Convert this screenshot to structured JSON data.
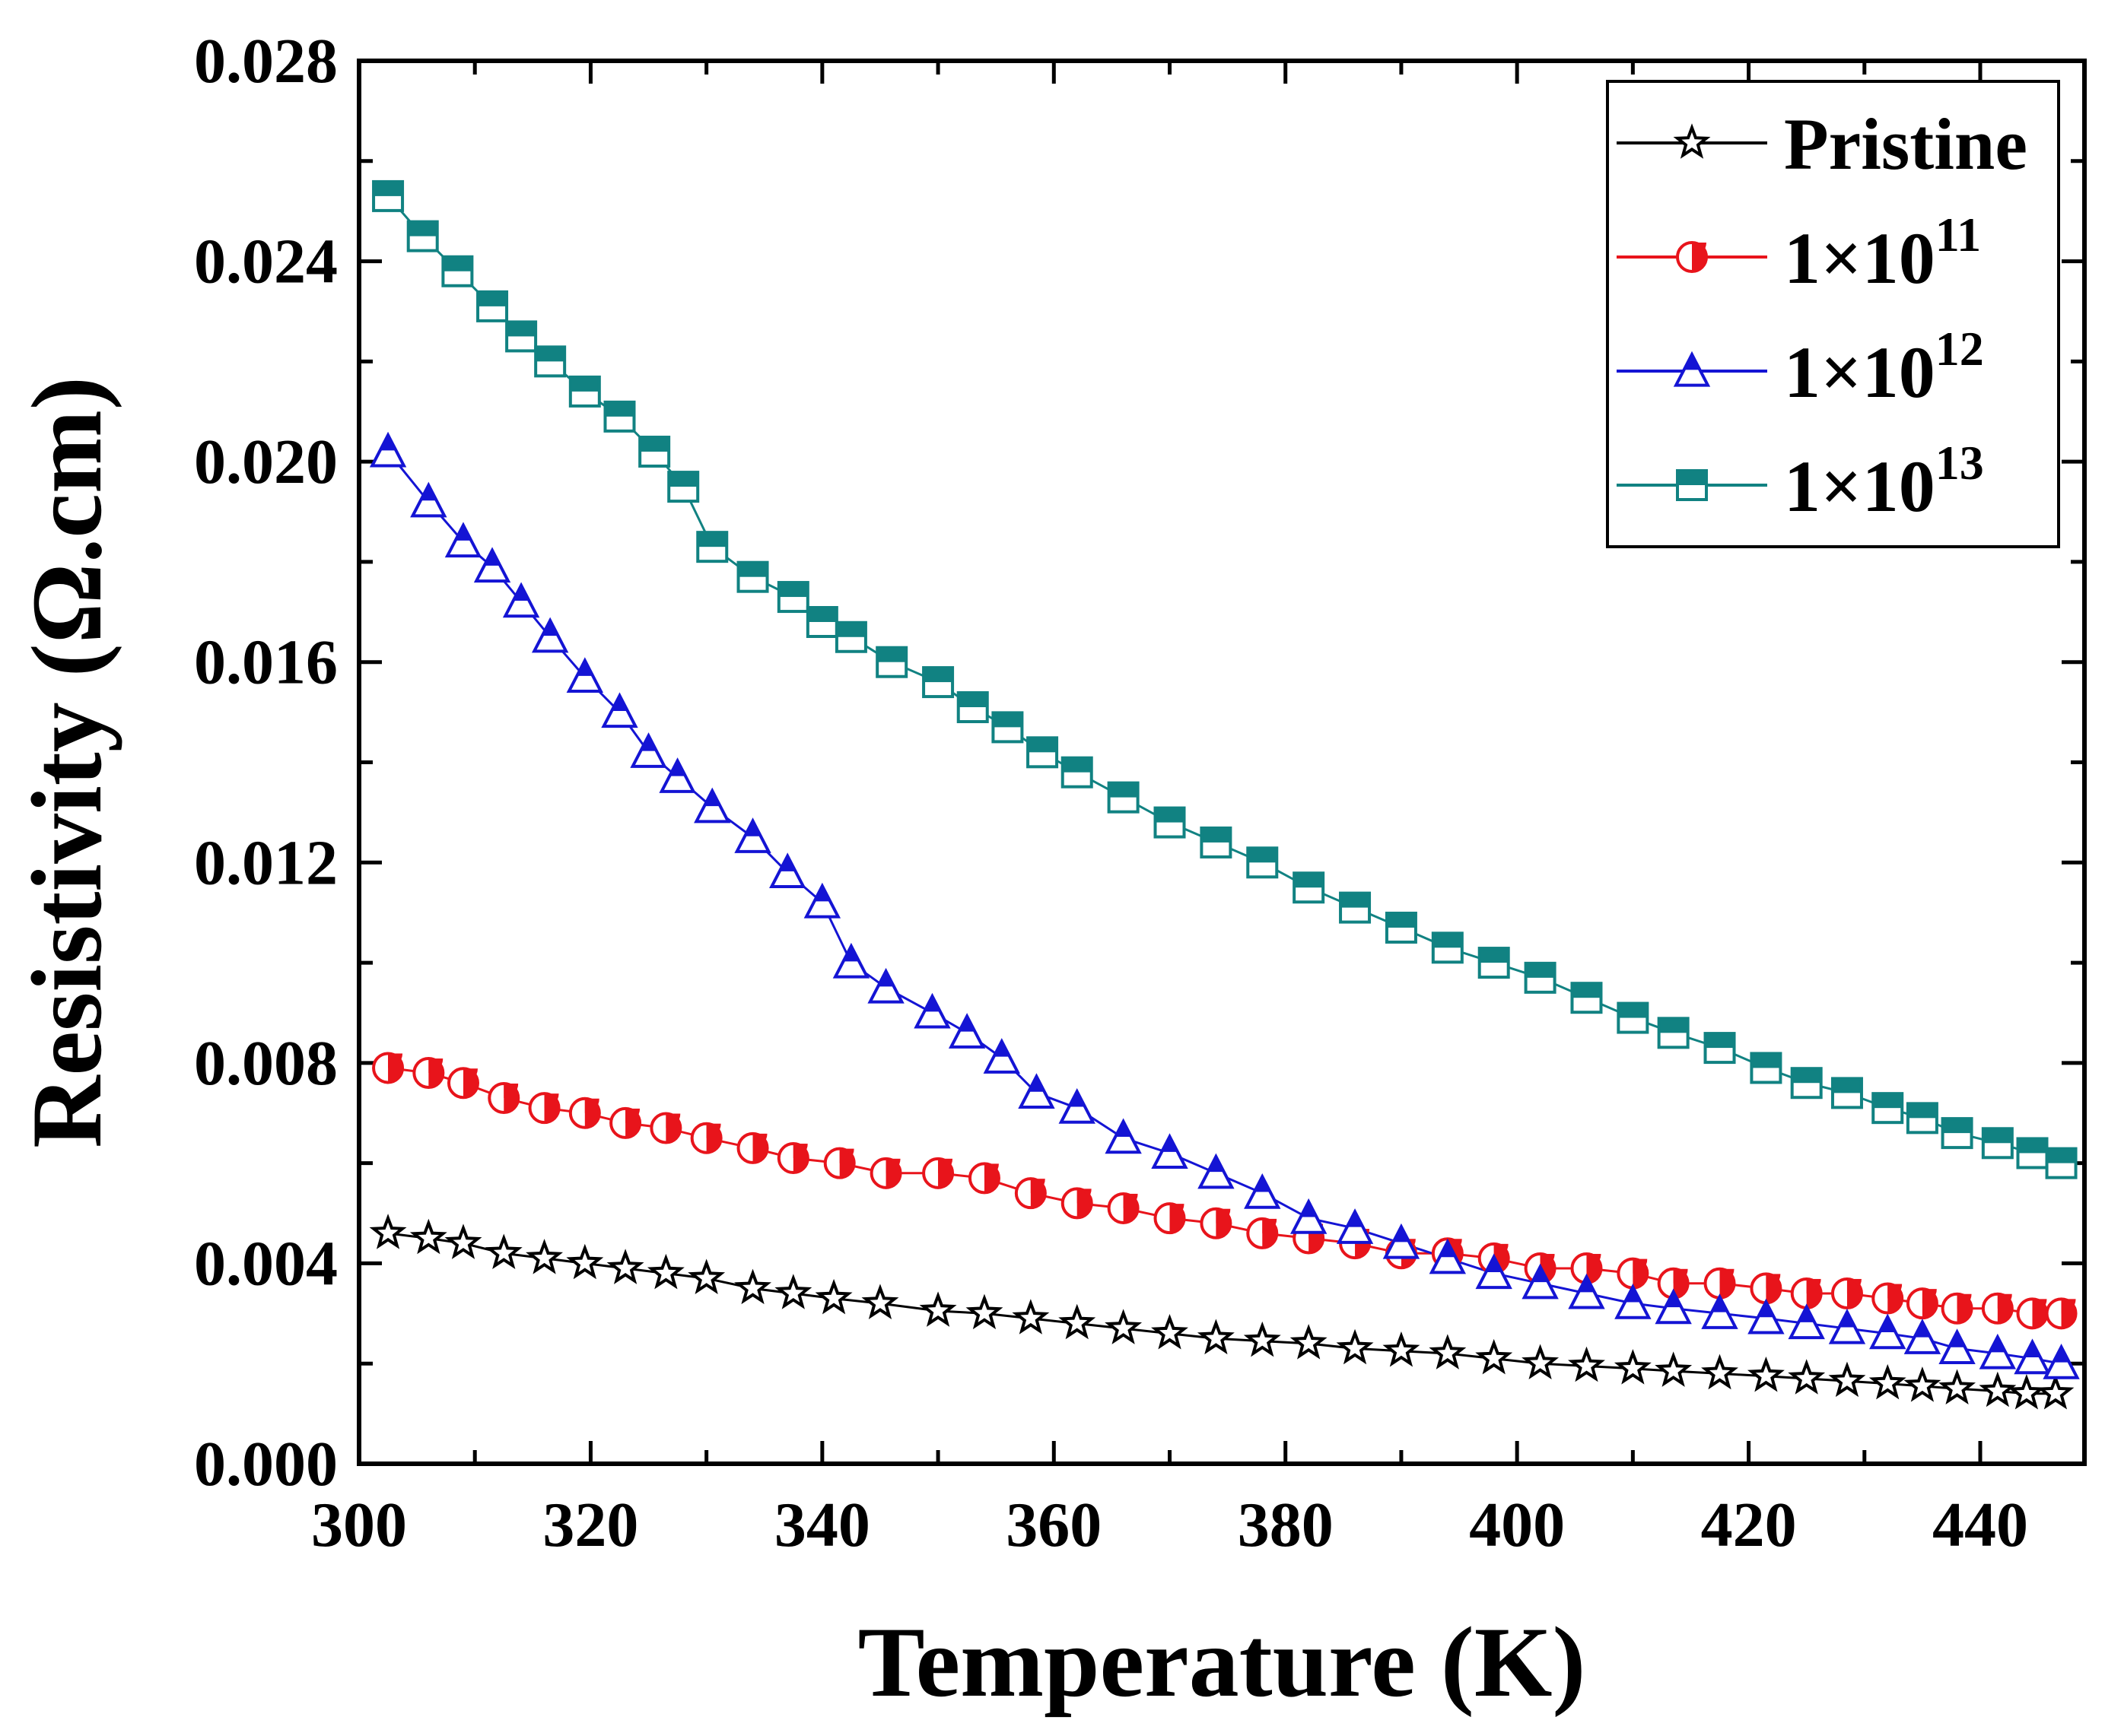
{
  "chart_data": {
    "type": "scatter",
    "title": "",
    "xlabel": "Temperature (K)",
    "ylabel": "Resistivity (Ω.cm)",
    "xlim": [
      300,
      449
    ],
    "ylim": [
      0.0,
      0.028
    ],
    "x_ticks": [
      300,
      320,
      340,
      360,
      380,
      400,
      420,
      440
    ],
    "x_tick_labels": [
      "300",
      "320",
      "340",
      "360",
      "380",
      "400",
      "420",
      "440"
    ],
    "y_ticks": [
      0.0,
      0.004,
      0.008,
      0.012,
      0.016,
      0.02,
      0.024,
      0.028
    ],
    "y_tick_labels": [
      "0.000",
      "0.004",
      "0.008",
      "0.012",
      "0.016",
      "0.020",
      "0.024",
      "0.028"
    ],
    "legend_position": "top-right",
    "series": [
      {
        "name": "Pristine",
        "legend_label": {
          "base": "Pristine",
          "exp": ""
        },
        "marker": "star",
        "color": "#000000",
        "x": [
          302.5,
          306,
          309,
          312.5,
          316,
          319.5,
          323,
          326.5,
          330,
          334,
          337.5,
          341,
          345,
          350,
          354,
          358,
          362,
          366,
          370,
          374,
          378,
          382,
          386,
          390,
          394,
          398,
          402,
          406,
          410,
          413.5,
          417.5,
          421.5,
          425,
          428.5,
          432,
          435,
          438,
          441.5,
          444,
          446.5
        ],
        "y": [
          0.0046,
          0.0045,
          0.0044,
          0.0042,
          0.0041,
          0.004,
          0.0039,
          0.0038,
          0.0037,
          0.0035,
          0.0034,
          0.0033,
          0.0032,
          0.00305,
          0.003,
          0.0029,
          0.0028,
          0.0027,
          0.0026,
          0.0025,
          0.00245,
          0.0024,
          0.0023,
          0.00225,
          0.0022,
          0.0021,
          0.002,
          0.00195,
          0.0019,
          0.00185,
          0.0018,
          0.00175,
          0.0017,
          0.00165,
          0.0016,
          0.00155,
          0.0015,
          0.00145,
          0.0014,
          0.0014
        ]
      },
      {
        "name": "1×10^11",
        "legend_label": {
          "base": "1×10",
          "exp": "11"
        },
        "marker": "half-circle",
        "color": "#e8141b",
        "x": [
          302.5,
          306,
          309,
          312.5,
          316,
          319.5,
          323,
          326.5,
          330,
          334,
          337.5,
          341.5,
          345.5,
          350,
          354,
          358,
          362,
          366,
          370,
          374,
          378,
          382,
          386,
          390,
          394,
          398,
          402,
          406,
          410,
          413.5,
          417.5,
          421.5,
          425,
          428.5,
          432,
          435,
          438,
          441.5,
          444.5,
          447
        ],
        "y": [
          0.0079,
          0.0078,
          0.0076,
          0.0073,
          0.0071,
          0.007,
          0.0068,
          0.0067,
          0.0065,
          0.0063,
          0.0061,
          0.006,
          0.0058,
          0.0058,
          0.0057,
          0.0054,
          0.0052,
          0.0051,
          0.0049,
          0.0048,
          0.0046,
          0.0045,
          0.0044,
          0.0042,
          0.0042,
          0.0041,
          0.0039,
          0.0039,
          0.0038,
          0.0036,
          0.0036,
          0.0035,
          0.0034,
          0.0034,
          0.0033,
          0.0032,
          0.0031,
          0.0031,
          0.003,
          0.003
        ]
      },
      {
        "name": "1×10^12",
        "legend_label": {
          "base": "1×10",
          "exp": "12"
        },
        "marker": "half-triangle",
        "color": "#1414d4",
        "x": [
          302.5,
          306,
          309,
          311.5,
          314,
          316.5,
          319.5,
          322.5,
          325,
          327.5,
          330.5,
          334,
          337,
          340,
          342.5,
          345.5,
          349.5,
          352.5,
          355.5,
          358.5,
          362,
          366,
          370,
          374,
          378,
          382,
          386,
          390,
          394,
          398,
          402,
          406,
          410,
          413.5,
          417.5,
          421.5,
          425,
          428.5,
          432,
          435,
          438,
          441.5,
          444.5,
          447
        ],
        "y": [
          0.0202,
          0.0192,
          0.0184,
          0.0179,
          0.0172,
          0.0165,
          0.0157,
          0.015,
          0.0142,
          0.0137,
          0.0131,
          0.0125,
          0.0118,
          0.0112,
          0.01,
          0.0095,
          0.009,
          0.0086,
          0.0081,
          0.0074,
          0.0071,
          0.0065,
          0.0062,
          0.0058,
          0.0054,
          0.0049,
          0.0047,
          0.0044,
          0.0041,
          0.0038,
          0.0036,
          0.0034,
          0.0032,
          0.0031,
          0.003,
          0.0029,
          0.0028,
          0.0027,
          0.0026,
          0.0025,
          0.0023,
          0.0022,
          0.0021,
          0.002
        ]
      },
      {
        "name": "1×10^13",
        "legend_label": {
          "base": "1×10",
          "exp": "13"
        },
        "marker": "half-square",
        "color": "#118282",
        "x": [
          302.5,
          305.5,
          308.5,
          311.5,
          314,
          316.5,
          319.5,
          322.5,
          325.5,
          328,
          330.5,
          334,
          337.5,
          340,
          342.5,
          346,
          350,
          353,
          356,
          359,
          362,
          366,
          370,
          374,
          378,
          382,
          386,
          390,
          394,
          398,
          402,
          406,
          410,
          413.5,
          417.5,
          421.5,
          425,
          428.5,
          432,
          435,
          438,
          441.5,
          444.5,
          447
        ],
        "y": [
          0.0253,
          0.0245,
          0.0238,
          0.0231,
          0.0225,
          0.022,
          0.0214,
          0.0209,
          0.0202,
          0.0195,
          0.0183,
          0.0177,
          0.0173,
          0.0168,
          0.0165,
          0.016,
          0.0156,
          0.0151,
          0.0147,
          0.0142,
          0.0138,
          0.0133,
          0.0128,
          0.0124,
          0.012,
          0.0115,
          0.0111,
          0.0107,
          0.0103,
          0.01,
          0.0097,
          0.0093,
          0.0089,
          0.0086,
          0.0083,
          0.0079,
          0.0076,
          0.0074,
          0.0071,
          0.0069,
          0.0066,
          0.0064,
          0.0062,
          0.006
        ]
      }
    ]
  }
}
